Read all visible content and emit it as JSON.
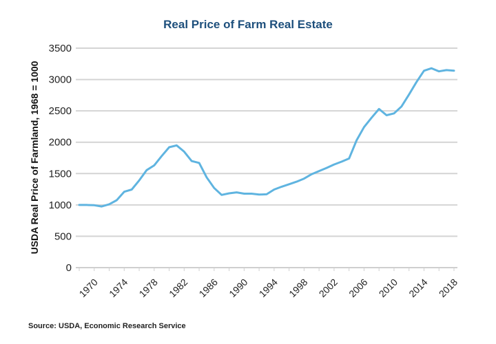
{
  "chart_data": {
    "type": "line",
    "title": "Real Price of Farm Real Estate",
    "xlabel": "",
    "ylabel": "USDA Real Price of Farmland, 1968 = 1000",
    "source": "Source: USDA, Economic Research Service",
    "ylim": [
      0,
      3500
    ],
    "xlim": [
      1968,
      2018
    ],
    "yticks": [
      0,
      500,
      1000,
      1500,
      2000,
      2500,
      3000,
      3500
    ],
    "ytick_labels": [
      "0",
      "500",
      "1000",
      "1500",
      "2000",
      "2500",
      "3000",
      "3500"
    ],
    "xticks": [
      1970,
      1974,
      1978,
      1982,
      1986,
      1990,
      1994,
      1998,
      2002,
      2006,
      2010,
      2014,
      2018
    ],
    "xtick_labels": [
      "1970",
      "1974",
      "1978",
      "1982",
      "1986",
      "1990",
      "1994",
      "1998",
      "2002",
      "2006",
      "2010",
      "2014",
      "2018"
    ],
    "grid": true,
    "legend": "none",
    "series": [
      {
        "name": "Real Price of Farmland",
        "color": "#5fb4e0",
        "x": [
          1968,
          1969,
          1970,
          1971,
          1972,
          1973,
          1974,
          1975,
          1976,
          1977,
          1978,
          1979,
          1980,
          1981,
          1982,
          1983,
          1984,
          1985,
          1986,
          1987,
          1988,
          1989,
          1990,
          1991,
          1992,
          1993,
          1994,
          1995,
          1996,
          1997,
          1998,
          1999,
          2000,
          2001,
          2002,
          2003,
          2004,
          2005,
          2006,
          2007,
          2008,
          2009,
          2010,
          2011,
          2012,
          2013,
          2014,
          2015,
          2016,
          2017,
          2018
        ],
        "values": [
          1000,
          1000,
          995,
          975,
          1010,
          1075,
          1210,
          1245,
          1390,
          1555,
          1630,
          1780,
          1920,
          1950,
          1850,
          1700,
          1670,
          1440,
          1270,
          1160,
          1185,
          1200,
          1180,
          1180,
          1165,
          1170,
          1245,
          1290,
          1330,
          1370,
          1420,
          1490,
          1540,
          1590,
          1645,
          1690,
          1740,
          2030,
          2240,
          2390,
          2530,
          2430,
          2460,
          2570,
          2760,
          2960,
          3140,
          3180,
          3130,
          3150,
          3140
        ]
      }
    ]
  }
}
